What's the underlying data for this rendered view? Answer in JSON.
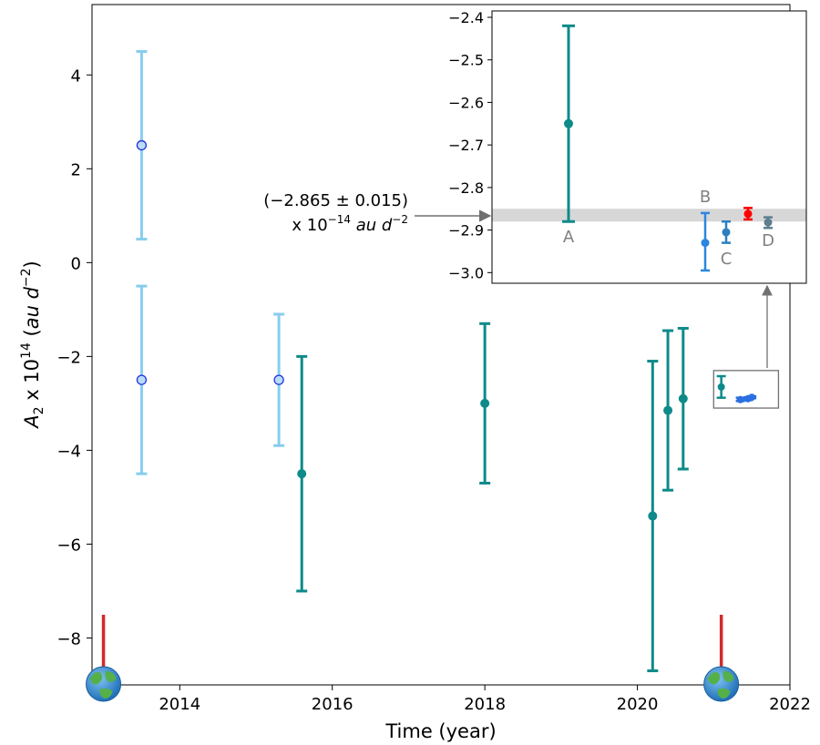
{
  "chart_data": {
    "type": "scatter",
    "main": {
      "xlabel": "Time (year)",
      "ylabel_parts": {
        "base": "A",
        "sub": "2",
        "mid": " x 10",
        "sup": "14",
        "open": " (",
        "unit": "au d",
        "unit_sup": "−2",
        "close": ")"
      },
      "xlim": [
        2012.85,
        2022.0
      ],
      "ylim": [
        -9.0,
        5.5
      ],
      "xticks": [
        {
          "v": 2014,
          "label": "2014"
        },
        {
          "v": 2016,
          "label": "2016"
        },
        {
          "v": 2018,
          "label": "2018"
        },
        {
          "v": 2020,
          "label": "2020"
        },
        {
          "v": 2022,
          "label": "2022"
        }
      ],
      "yticks": [
        {
          "v": 4,
          "label": "4"
        },
        {
          "v": 2,
          "label": "2"
        },
        {
          "v": 0,
          "label": "0"
        },
        {
          "v": -2,
          "label": "−2"
        },
        {
          "v": -4,
          "label": "−4"
        },
        {
          "v": -6,
          "label": "−6"
        },
        {
          "v": -8,
          "label": "−8"
        }
      ],
      "series": [
        {
          "style": "light",
          "points": [
            {
              "x": 2013.5,
              "y": 2.5,
              "lo": 0.5,
              "hi": 4.5
            },
            {
              "x": 2013.5,
              "y": -2.5,
              "lo": -4.5,
              "hi": -0.5
            },
            {
              "x": 2015.3,
              "y": -2.5,
              "lo": -3.9,
              "hi": -1.1
            }
          ]
        },
        {
          "style": "teal",
          "points": [
            {
              "x": 2015.6,
              "y": -4.5,
              "lo": -7.0,
              "hi": -2.0
            },
            {
              "x": 2018.0,
              "y": -3.0,
              "lo": -4.7,
              "hi": -1.3
            },
            {
              "x": 2020.2,
              "y": -5.4,
              "lo": -8.7,
              "hi": -2.1
            },
            {
              "x": 2020.4,
              "y": -3.15,
              "lo": -4.85,
              "hi": -1.45
            },
            {
              "x": 2020.6,
              "y": -2.9,
              "lo": -4.4,
              "hi": -1.4
            }
          ]
        }
      ],
      "earth_markers": [
        2013.0,
        2021.1
      ],
      "zoom_box": {
        "x0": 2021.0,
        "x1": 2021.85,
        "y0": -3.1,
        "y1": -2.3
      },
      "zoom_points": [
        {
          "x": 2021.1,
          "y": -2.65,
          "lo": -2.88,
          "hi": -2.42,
          "style": "teal"
        },
        {
          "x": 2021.35,
          "y": -2.92,
          "lo": -2.95,
          "hi": -2.88,
          "style": "blue"
        },
        {
          "x": 2021.45,
          "y": -2.9,
          "lo": -2.93,
          "hi": -2.87,
          "style": "blue"
        },
        {
          "x": 2021.5,
          "y": -2.87,
          "lo": -2.89,
          "hi": -2.85,
          "style": "blue"
        }
      ]
    },
    "inset": {
      "ylim": [
        -3.025,
        -2.385
      ],
      "yticks": [
        {
          "v": -2.4,
          "label": "−2.4"
        },
        {
          "v": -2.5,
          "label": "−2.5"
        },
        {
          "v": -2.6,
          "label": "−2.6"
        },
        {
          "v": -2.7,
          "label": "−2.7"
        },
        {
          "v": -2.8,
          "label": "−2.8"
        },
        {
          "v": -2.9,
          "label": "−2.9"
        },
        {
          "v": -3.0,
          "label": "−3.0"
        }
      ],
      "band": {
        "lo": -2.88,
        "hi": -2.85
      },
      "points": [
        {
          "id": "A",
          "y": -2.65,
          "lo": -2.88,
          "hi": -2.42,
          "color": "#0e8a8a"
        },
        {
          "id": "B",
          "y": -2.93,
          "lo": -2.995,
          "hi": -2.86,
          "color": "#2b86e0"
        },
        {
          "id": "C",
          "y": -2.905,
          "lo": -2.93,
          "hi": -2.88,
          "color": "#2b7fc0"
        },
        {
          "id": "R",
          "y": -2.862,
          "lo": -2.875,
          "hi": -2.848,
          "color": "#ff0000"
        },
        {
          "id": "D",
          "y": -2.882,
          "lo": -2.895,
          "hi": -2.87,
          "color": "#5f7f8f"
        }
      ],
      "labels": {
        "A": "A",
        "B": "B",
        "C": "C",
        "D": "D"
      }
    },
    "annotation": {
      "line1": "(−2.865 ± 0.015)",
      "line2_prefix": "x 10",
      "line2_sup": "−14",
      "line2_unit": " au d",
      "line2_unit_sup": "−2"
    },
    "colors": {
      "teal": "#0e8a8a",
      "light": "#87cdee",
      "light_marker_edge": "#2233dd",
      "red_marker": "#d42a2a",
      "band": "#d7d7d7",
      "arrow": "#707070"
    }
  }
}
